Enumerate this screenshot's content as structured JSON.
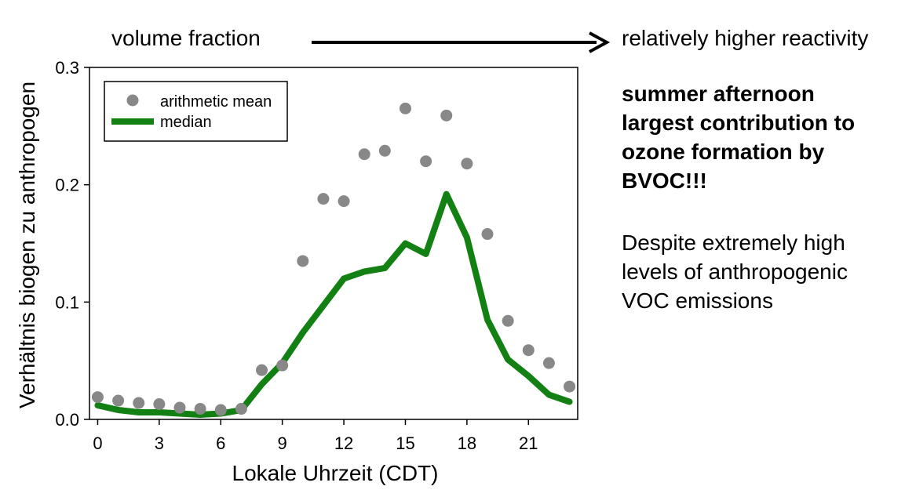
{
  "annotations": {
    "left_label": "volume fraction",
    "right_label": "relatively higher reactivity",
    "highlight_lines": [
      "summer afternoon",
      "largest contribution to",
      "ozone formation by",
      "BVOC!!!"
    ],
    "note_lines": [
      "Despite extremely high",
      "levels of anthropogenic",
      "VOC emissions"
    ]
  },
  "chart_data": {
    "type": "line",
    "title": "",
    "xlabel": "Lokale Uhrzeit (CDT)",
    "ylabel": "Verhältnis biogen zu anthropogen",
    "xlim": [
      -0.4,
      23.4
    ],
    "ylim": [
      0,
      0.3
    ],
    "xticks": [
      0,
      3,
      6,
      9,
      12,
      15,
      18,
      21
    ],
    "xtick_labels": [
      "0",
      "3",
      "6",
      "9",
      "12",
      "15",
      "18",
      "21"
    ],
    "yticks": [
      0,
      0.1,
      0.2,
      0.3
    ],
    "ytick_labels": [
      "0.0",
      "0.1",
      "0.2",
      "0.3"
    ],
    "legend_position": "top-left",
    "x": [
      0,
      1,
      2,
      3,
      4,
      5,
      6,
      7,
      8,
      9,
      10,
      11,
      12,
      13,
      14,
      15,
      16,
      17,
      18,
      19,
      20,
      21,
      22,
      23
    ],
    "series": [
      {
        "name": "arithmetic mean",
        "kind": "scatter",
        "color": "#888888",
        "values": [
          0.019,
          0.016,
          0.014,
          0.013,
          0.01,
          0.009,
          0.008,
          0.009,
          0.042,
          0.046,
          0.135,
          0.188,
          0.186,
          0.226,
          0.229,
          0.265,
          0.22,
          0.259,
          0.218,
          0.158,
          0.084,
          0.059,
          0.048,
          0.028
        ]
      },
      {
        "name": "median",
        "kind": "line",
        "color": "#138013",
        "values": [
          0.012,
          0.008,
          0.006,
          0.006,
          0.005,
          0.004,
          0.005,
          0.008,
          0.03,
          0.048,
          0.074,
          0.097,
          0.12,
          0.126,
          0.129,
          0.15,
          0.141,
          0.192,
          0.155,
          0.085,
          0.051,
          0.037,
          0.021,
          0.015
        ]
      }
    ]
  }
}
